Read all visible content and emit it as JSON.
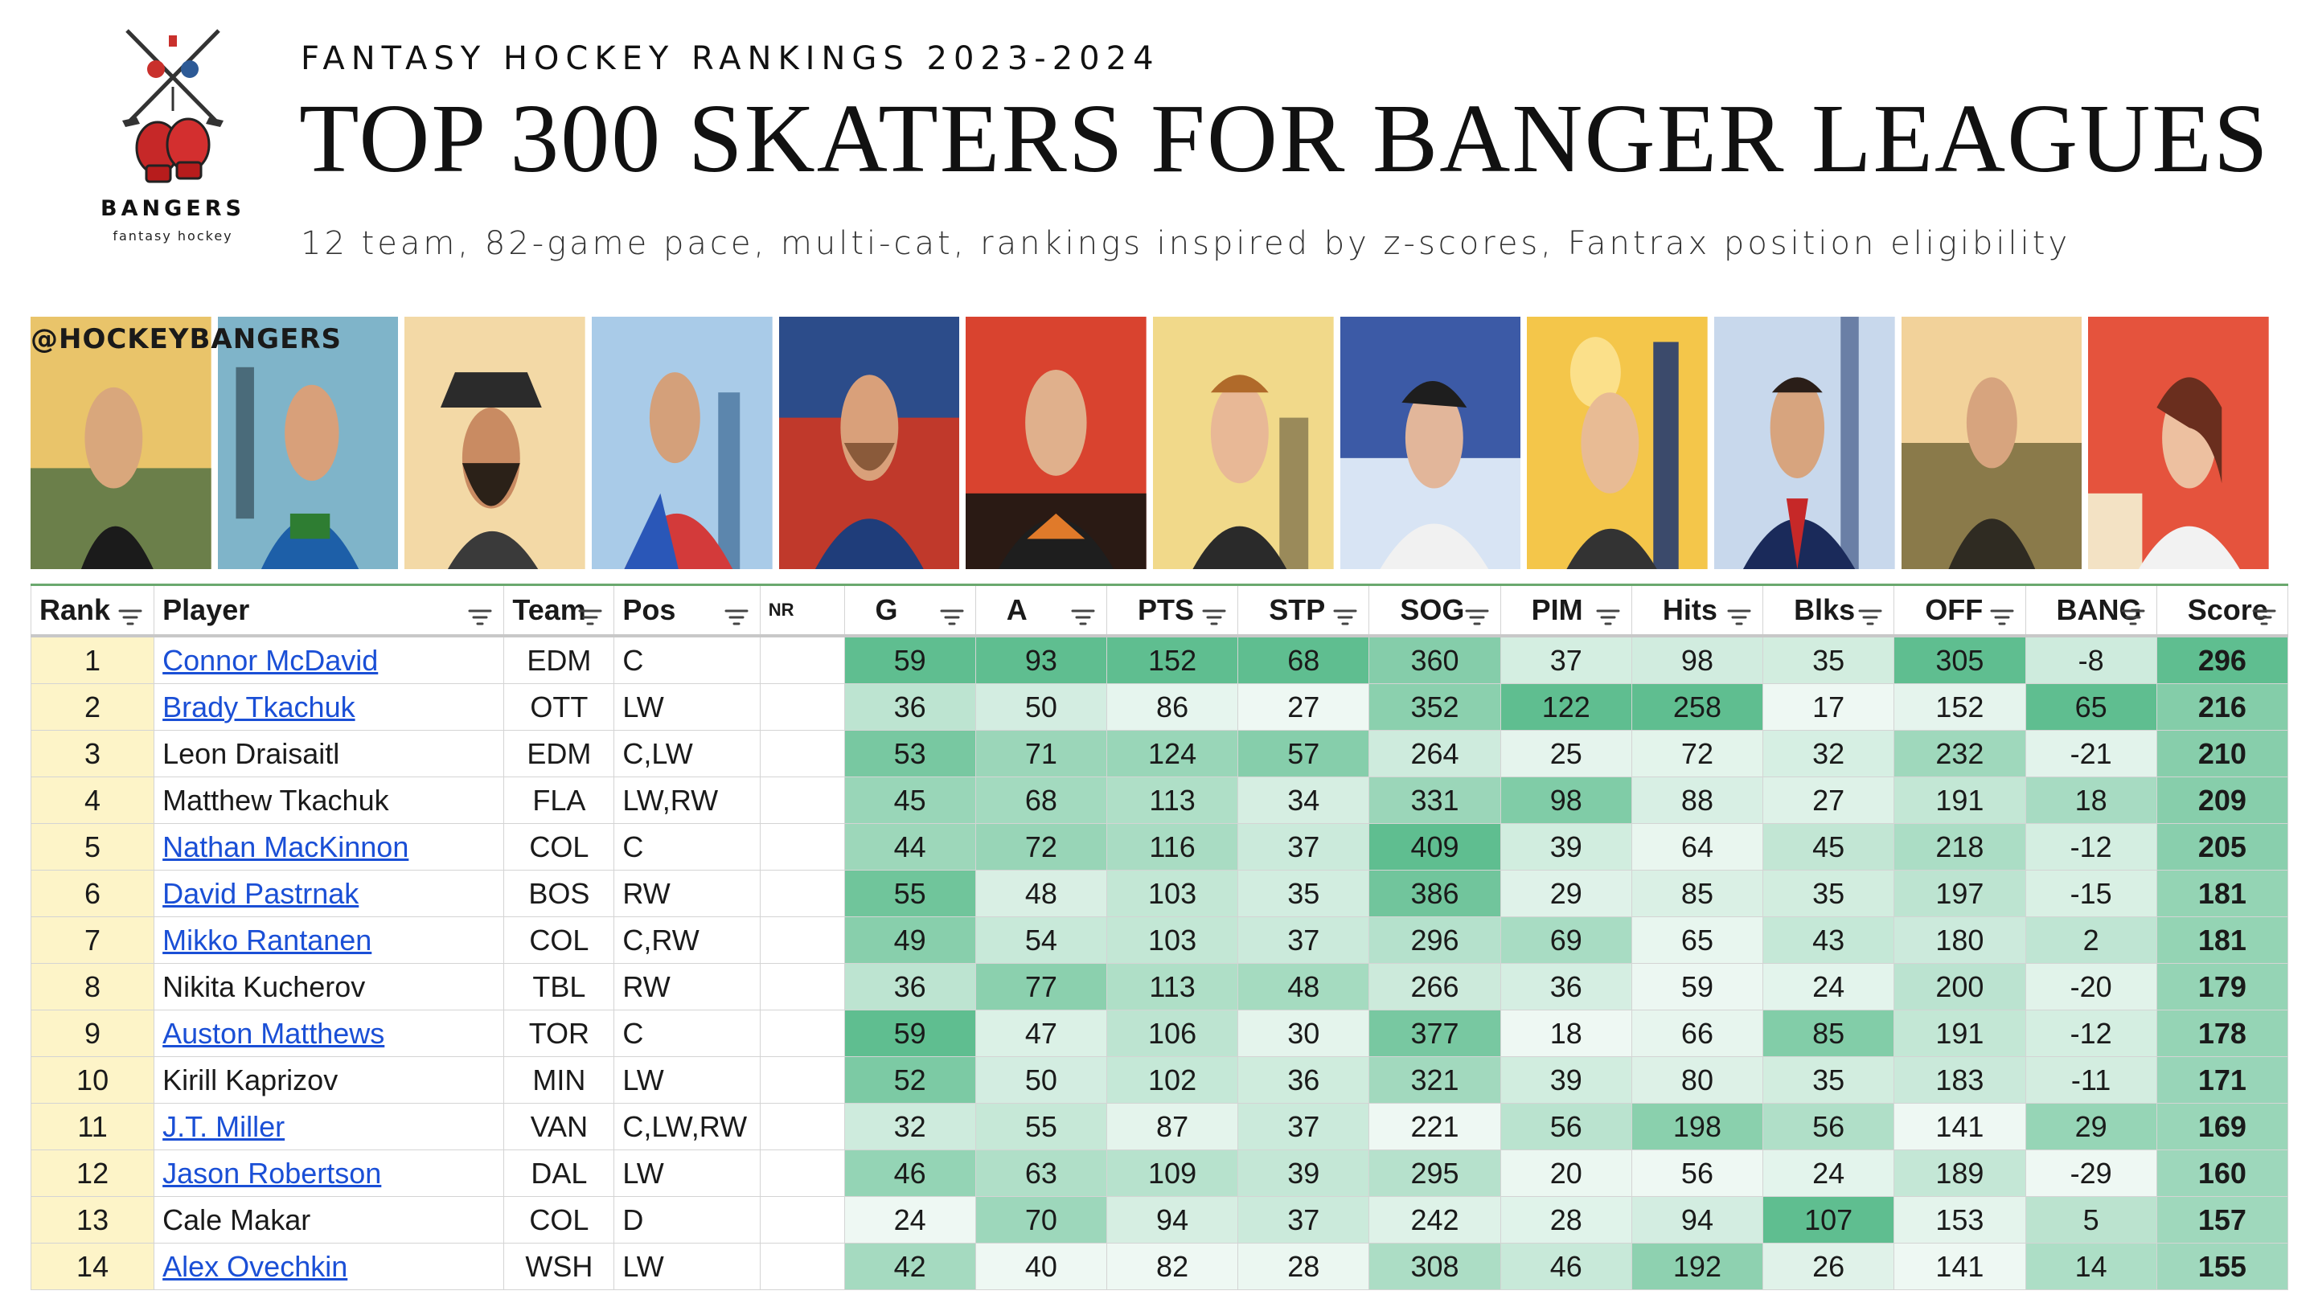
{
  "header": {
    "eyebrow": "FANTASY HOCKEY RANKINGS 2023-2024",
    "title": "TOP 300 SKATERS FOR BANGER LEAGUES",
    "subtitle": "12 team, 82-game pace, multi-cat, rankings inspired by z-scores, Fantrax position eligibility"
  },
  "logo": {
    "word": "BANGERS",
    "sub": "fantasy hockey"
  },
  "banner": {
    "handle": "@HOCKEYBANGERS"
  },
  "columns": [
    "Rank",
    "Player",
    "Team",
    "Pos",
    "NR",
    "G",
    "A",
    "PTS",
    "STP",
    "SOG",
    "PIM",
    "Hits",
    "Blks",
    "OFF",
    "BANG",
    "Score"
  ],
  "rows": [
    {
      "rank": "1",
      "player": "Connor McDavid",
      "link": true,
      "team": "EDM",
      "pos": "C",
      "nr": "",
      "g": "59",
      "a": "93",
      "pts": "152",
      "stp": "68",
      "sog": "360",
      "pim": "37",
      "hits": "98",
      "blks": "35",
      "off": "305",
      "bang": "-8",
      "score": "296"
    },
    {
      "rank": "2",
      "player": "Brady Tkachuk",
      "link": true,
      "team": "OTT",
      "pos": "LW",
      "nr": "",
      "g": "36",
      "a": "50",
      "pts": "86",
      "stp": "27",
      "sog": "352",
      "pim": "122",
      "hits": "258",
      "blks": "17",
      "off": "152",
      "bang": "65",
      "score": "216"
    },
    {
      "rank": "3",
      "player": "Leon Draisaitl",
      "link": false,
      "team": "EDM",
      "pos": "C,LW",
      "nr": "",
      "g": "53",
      "a": "71",
      "pts": "124",
      "stp": "57",
      "sog": "264",
      "pim": "25",
      "hits": "72",
      "blks": "32",
      "off": "232",
      "bang": "-21",
      "score": "210"
    },
    {
      "rank": "4",
      "player": "Matthew Tkachuk",
      "link": false,
      "team": "FLA",
      "pos": "LW,RW",
      "nr": "",
      "g": "45",
      "a": "68",
      "pts": "113",
      "stp": "34",
      "sog": "331",
      "pim": "98",
      "hits": "88",
      "blks": "27",
      "off": "191",
      "bang": "18",
      "score": "209"
    },
    {
      "rank": "5",
      "player": "Nathan MacKinnon",
      "link": true,
      "team": "COL",
      "pos": "C",
      "nr": "",
      "g": "44",
      "a": "72",
      "pts": "116",
      "stp": "37",
      "sog": "409",
      "pim": "39",
      "hits": "64",
      "blks": "45",
      "off": "218",
      "bang": "-12",
      "score": "205"
    },
    {
      "rank": "6",
      "player": "David Pastrnak",
      "link": true,
      "team": "BOS",
      "pos": "RW",
      "nr": "",
      "g": "55",
      "a": "48",
      "pts": "103",
      "stp": "35",
      "sog": "386",
      "pim": "29",
      "hits": "85",
      "blks": "35",
      "off": "197",
      "bang": "-15",
      "score": "181"
    },
    {
      "rank": "7",
      "player": "Mikko Rantanen",
      "link": true,
      "team": "COL",
      "pos": "C,RW",
      "nr": "",
      "g": "49",
      "a": "54",
      "pts": "103",
      "stp": "37",
      "sog": "296",
      "pim": "69",
      "hits": "65",
      "blks": "43",
      "off": "180",
      "bang": "2",
      "score": "181"
    },
    {
      "rank": "8",
      "player": "Nikita Kucherov",
      "link": false,
      "team": "TBL",
      "pos": "RW",
      "nr": "",
      "g": "36",
      "a": "77",
      "pts": "113",
      "stp": "48",
      "sog": "266",
      "pim": "36",
      "hits": "59",
      "blks": "24",
      "off": "200",
      "bang": "-20",
      "score": "179"
    },
    {
      "rank": "9",
      "player": "Auston Matthews",
      "link": true,
      "team": "TOR",
      "pos": "C",
      "nr": "",
      "g": "59",
      "a": "47",
      "pts": "106",
      "stp": "30",
      "sog": "377",
      "pim": "18",
      "hits": "66",
      "blks": "85",
      "off": "191",
      "bang": "-12",
      "score": "178"
    },
    {
      "rank": "10",
      "player": "Kirill Kaprizov",
      "link": false,
      "team": "MIN",
      "pos": "LW",
      "nr": "",
      "g": "52",
      "a": "50",
      "pts": "102",
      "stp": "36",
      "sog": "321",
      "pim": "39",
      "hits": "80",
      "blks": "35",
      "off": "183",
      "bang": "-11",
      "score": "171"
    },
    {
      "rank": "11",
      "player": "J.T. Miller",
      "link": true,
      "team": "VAN",
      "pos": "C,LW,RW",
      "nr": "",
      "g": "32",
      "a": "55",
      "pts": "87",
      "stp": "37",
      "sog": "221",
      "pim": "56",
      "hits": "198",
      "blks": "56",
      "off": "141",
      "bang": "29",
      "score": "169"
    },
    {
      "rank": "12",
      "player": "Jason Robertson",
      "link": true,
      "team": "DAL",
      "pos": "LW",
      "nr": "",
      "g": "46",
      "a": "63",
      "pts": "109",
      "stp": "39",
      "sog": "295",
      "pim": "20",
      "hits": "56",
      "blks": "24",
      "off": "189",
      "bang": "-29",
      "score": "160"
    },
    {
      "rank": "13",
      "player": "Cale Makar",
      "link": false,
      "team": "COL",
      "pos": "D",
      "nr": "",
      "g": "24",
      "a": "70",
      "pts": "94",
      "stp": "37",
      "sog": "242",
      "pim": "28",
      "hits": "94",
      "blks": "107",
      "off": "153",
      "bang": "5",
      "score": "157"
    },
    {
      "rank": "14",
      "player": "Alex Ovechkin",
      "link": true,
      "team": "WSH",
      "pos": "LW",
      "nr": "",
      "g": "42",
      "a": "40",
      "pts": "82",
      "stp": "28",
      "sog": "308",
      "pim": "46",
      "hits": "192",
      "blks": "26",
      "off": "141",
      "bang": "14",
      "score": "155"
    }
  ],
  "colors": {
    "heat_high": "#57bb8a",
    "heat_low": "#ffffff",
    "rank_bg": "#fdf4c8",
    "link": "#1a4fd6"
  }
}
